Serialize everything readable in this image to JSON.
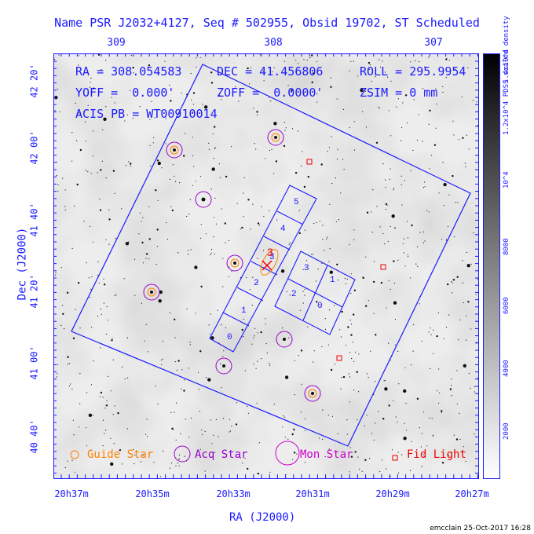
{
  "title": "Name PSR J2032+4127, Seq # 502955, Obsid 19702, ST Scheduled",
  "info": {
    "ra": "RA = 308.054583",
    "dec": "DEC = 41.456806",
    "roll": "ROLL = 295.9954",
    "yoff": "YOFF =  0.000'",
    "zoff": "ZOFF =  0.0000'",
    "zsim": "ZSIM = 0 mm",
    "acis": "ACIS PB = WT00910014"
  },
  "axes": {
    "top_ticks": [
      "309",
      "308",
      "307"
    ],
    "bottom_ticks": [
      "20h37m",
      "20h35m",
      "20h33m",
      "20h31m",
      "20h29m",
      "20h27m"
    ],
    "left_ticks": [
      "42 20'",
      "42 00'",
      "41 40'",
      "41 20'",
      "41 00'",
      "40 40'"
    ],
    "xlabel": "RA (J2000)",
    "ylabel": "Dec (J2000)"
  },
  "colorbar": {
    "label": "1.2x10^4 PDSS scaled density",
    "ticks": [
      "1.4x10^4",
      "10^4",
      "8000",
      "6000",
      "4000",
      "2000"
    ]
  },
  "chips": [
    "0",
    "1",
    "2",
    "3",
    "4",
    "5",
    "0",
    "1",
    "2",
    "3"
  ],
  "target_label": "3",
  "legend": {
    "guide": "Guide Star",
    "acq": "Acq Star",
    "mon": "Mon Star",
    "fid": "Fid Light"
  },
  "colors": {
    "axes": "#1a1aff",
    "guide": "#ff8000",
    "acq": "#9900cc",
    "mon": "#cc00cc",
    "fid": "#ee0000"
  },
  "credit": "emcclain 25-Oct-2017 16:28"
}
